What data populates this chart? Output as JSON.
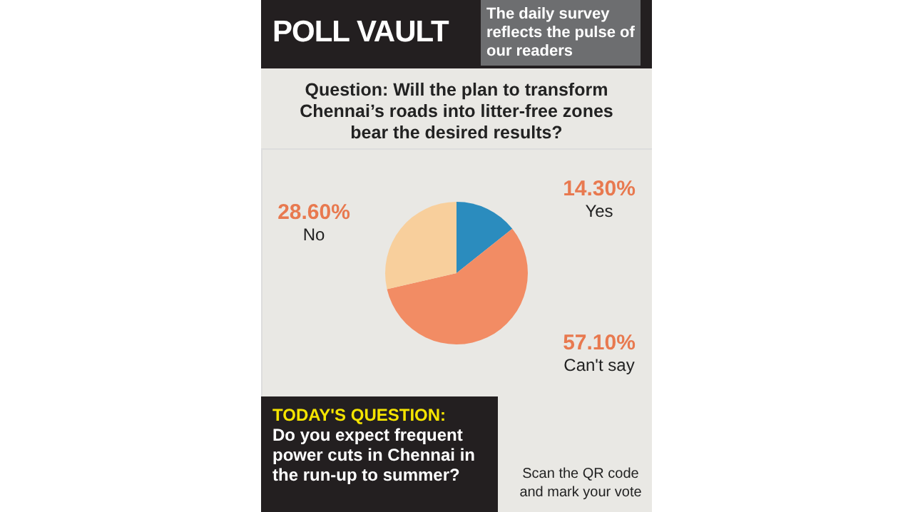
{
  "chart_data": {
    "type": "pie",
    "title": "POLL VAULT",
    "subtitle": "The daily survey reflects the pulse of our readers",
    "categories": [
      "Yes",
      "Can't say",
      "No"
    ],
    "values": [
      14.3,
      57.1,
      28.6
    ],
    "colors": [
      "#2b8cbe",
      "#f28c64",
      "#f8cf9c"
    ],
    "value_labels": [
      "14.30%",
      "57.10%",
      "28.60%"
    ],
    "annotations": [
      "Question: Will the plan to transform Chennai’s roads into litter-free zones bear the desired results?",
      "TODAY'S QUESTION:",
      "Do you expect frequent power cuts in Chennai in the run-up to summer?",
      "Scan the QR code and mark your vote"
    ]
  }
}
